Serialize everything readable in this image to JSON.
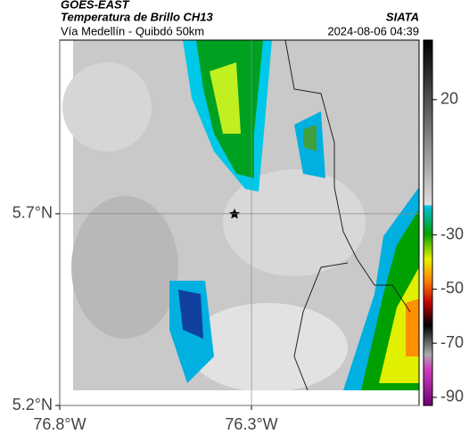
{
  "header": {
    "source": "GOES-EAST",
    "title": "Temperatura de Brillo CH13",
    "agency": "SIATA",
    "route": "Vía Medellín - Quibdó 50km",
    "timestamp": "2024-08-06 04:39"
  },
  "map": {
    "xlim": [
      -76.8,
      -75.863
    ],
    "ylim": [
      5.2,
      6.153
    ],
    "xticks": [
      {
        "value": -76.8,
        "label": "76.8°W"
      },
      {
        "value": -76.3,
        "label": "76.3°W"
      }
    ],
    "yticks": [
      {
        "value": 5.7,
        "label": "5.7°N"
      },
      {
        "value": 5.2,
        "label": "5.2°N"
      }
    ],
    "colorbar": {
      "lim": [
        -93,
        42
      ],
      "ticks": [
        20,
        -30,
        -50,
        -70,
        -90
      ]
    }
  }
}
